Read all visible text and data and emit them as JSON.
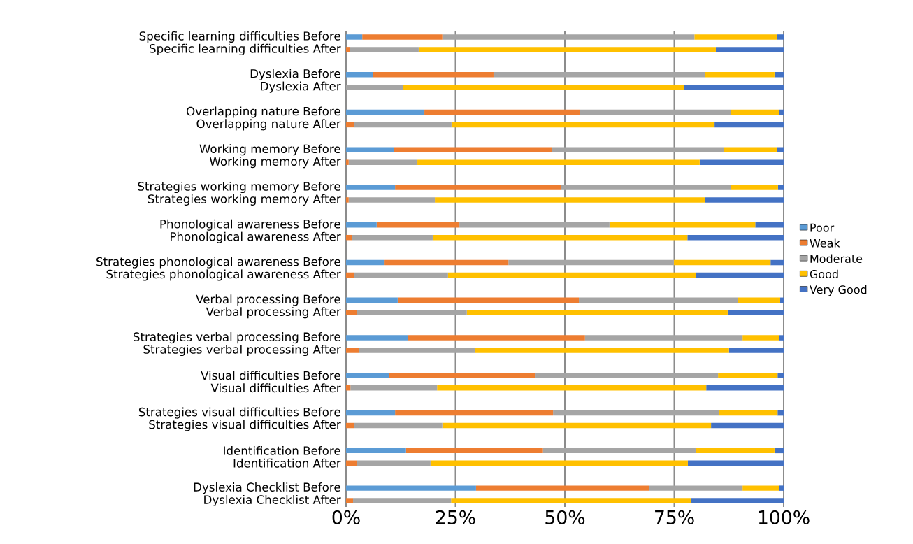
{
  "chart_data": {
    "type": "bar",
    "orientation": "horizontal",
    "stacked": true,
    "categories": [
      "Specific learning difficulties Before",
      "Specific learning difficulties After",
      "Dyslexia Before",
      "Dyslexia After",
      "Overlapping nature Before",
      "Overlapping nature After",
      "Working memory Before",
      "Working memory After",
      "Strategies working memory Before",
      "Strategies working memory After",
      "Phonological awareness Before",
      "Phonological awareness After",
      "Strategies phonological awareness Before",
      "Strategies phonological awareness After",
      "Verbal processing Before",
      "Verbal processing After",
      "Strategies verbal processing Before",
      "Strategies verbal processing After",
      "Visual difficulties Before",
      "Visual difficulties After",
      "Strategies visual difficulties Before",
      "Strategies visual difficulties After",
      "Identification Before",
      "Identification After",
      "Dyslexia Checklist Before",
      "Dyslexia Checklist After"
    ],
    "series": [
      {
        "name": "Poor",
        "color": "#5b9bd5",
        "values": [
          3.7,
          0,
          6.1,
          0,
          17.9,
          0,
          10.9,
          0,
          11.2,
          0,
          7.0,
          0,
          8.8,
          0,
          11.8,
          0,
          14.1,
          0,
          9.9,
          0,
          11.2,
          0,
          13.7,
          0,
          29.7,
          0
        ]
      },
      {
        "name": "Weak",
        "color": "#ed7d31",
        "values": [
          18.3,
          0.8,
          27.6,
          0,
          35.5,
          1.9,
          36.2,
          0.6,
          38.0,
          0.6,
          18.9,
          1.3,
          28.3,
          1.9,
          41.4,
          2.4,
          40.5,
          2.9,
          33.4,
          1.0,
          36.1,
          1.9,
          31.3,
          2.4,
          39.6,
          1.6
        ]
      },
      {
        "name": "Moderate",
        "color": "#a5a5a5",
        "values": [
          57.6,
          15.8,
          48.4,
          13.1,
          34.5,
          22.2,
          39.2,
          15.7,
          38.7,
          19.7,
          34.3,
          18.5,
          37.8,
          21.4,
          36.3,
          25.2,
          36.0,
          26.5,
          41.7,
          19.8,
          38.0,
          20.1,
          35.0,
          16.9,
          21.3,
          22.4
        ]
      },
      {
        "name": "Good",
        "color": "#ffc000",
        "values": [
          18.8,
          67.9,
          15.8,
          64.1,
          11.0,
          60.1,
          12.1,
          64.5,
          10.8,
          61.8,
          33.3,
          58.2,
          22.1,
          56.7,
          9.7,
          59.6,
          8.3,
          58.1,
          13.6,
          61.5,
          13.3,
          61.4,
          17.9,
          58.8,
          8.3,
          54.8
        ]
      },
      {
        "name": "Very Good",
        "color": "#4472c4",
        "values": [
          1.6,
          15.5,
          2.1,
          22.8,
          1.1,
          15.8,
          1.6,
          19.2,
          1.3,
          17.9,
          6.5,
          22.0,
          3.0,
          20.0,
          0.8,
          12.8,
          1.1,
          12.5,
          1.4,
          17.7,
          1.4,
          16.6,
          2.1,
          21.9,
          1.1,
          21.2
        ]
      }
    ],
    "xlim": [
      0,
      100
    ],
    "xticks": [
      {
        "value": 0,
        "label": "0%"
      },
      {
        "value": 25,
        "label": "25%"
      },
      {
        "value": 50,
        "label": "50%"
      },
      {
        "value": 75,
        "label": "75%"
      },
      {
        "value": 100,
        "label": "100%"
      }
    ],
    "grid": "x",
    "legend": "right"
  }
}
